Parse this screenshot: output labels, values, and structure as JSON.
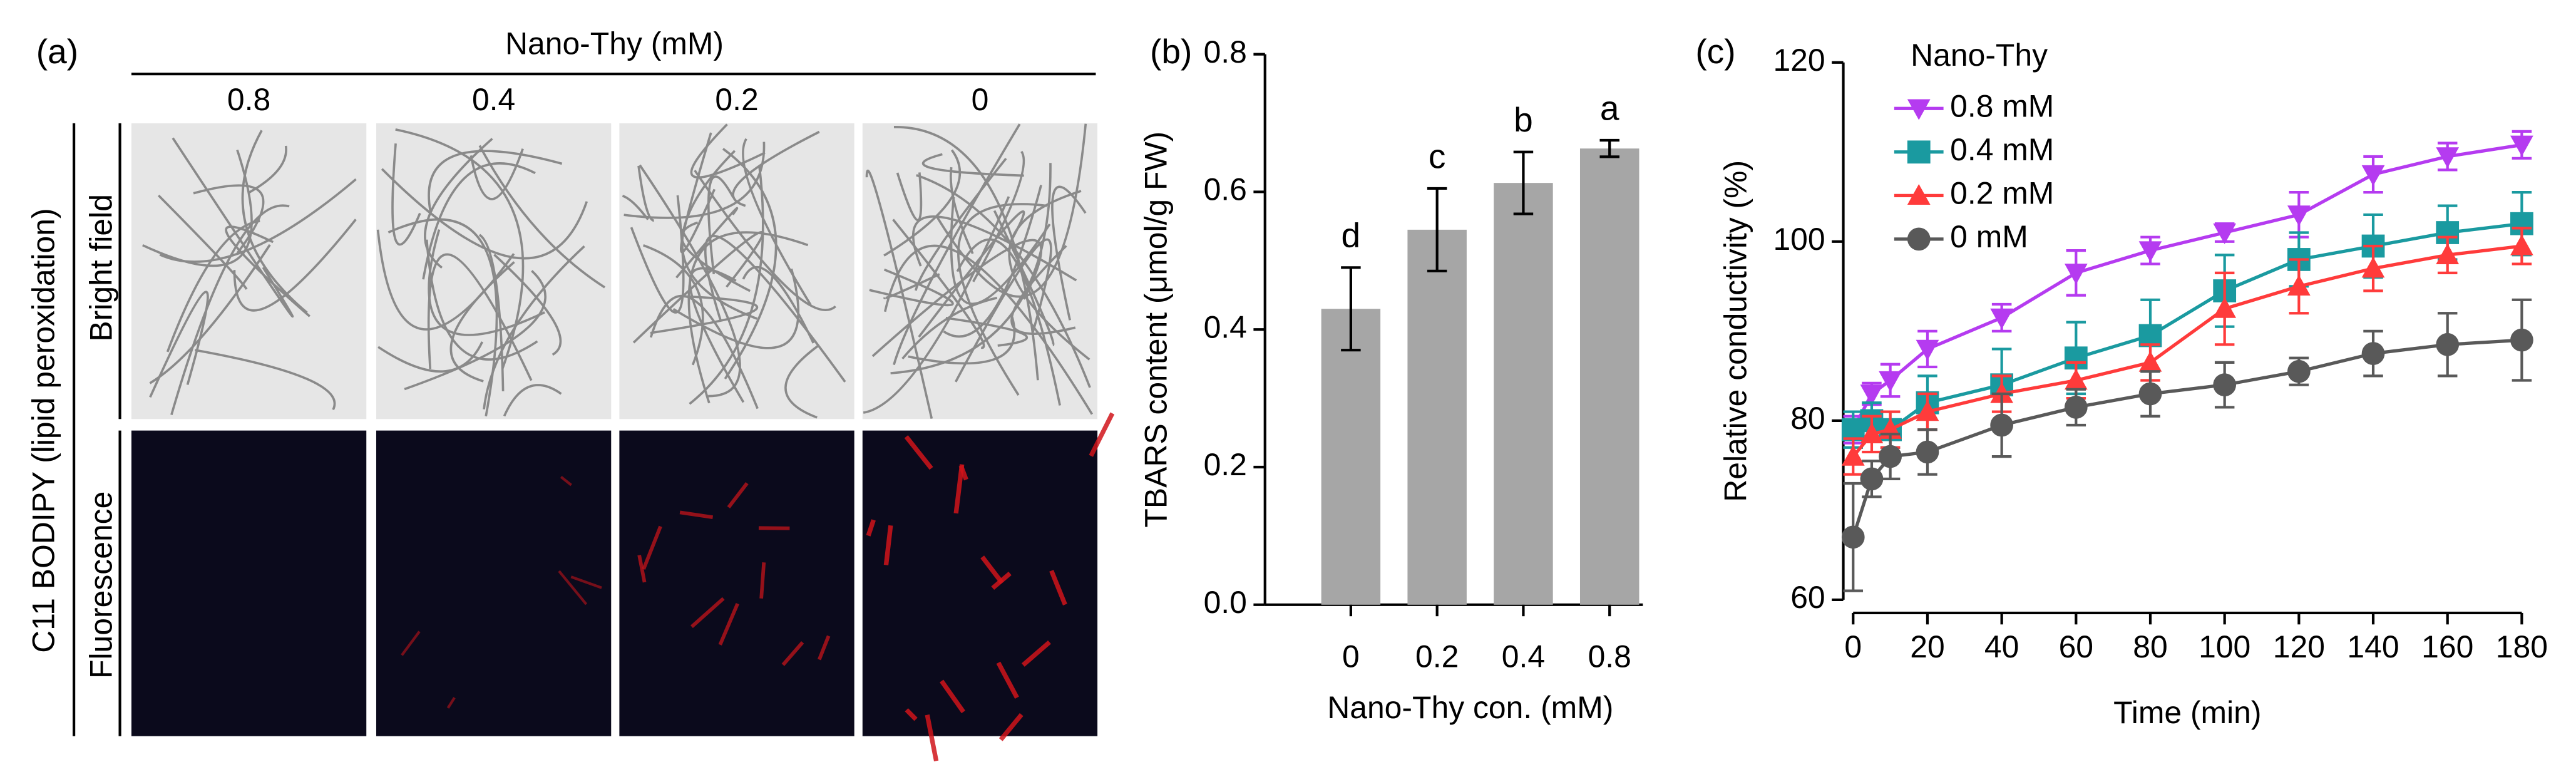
{
  "panel_a": {
    "label": "(a)",
    "title": "Nano-Thy (mM)",
    "columns": [
      "0.8",
      "0.4",
      "0.2",
      "0"
    ],
    "stain": "C11 BODIPY (lipid peroxidation)",
    "rows": [
      "Bright field",
      "Fluorescence"
    ]
  },
  "chart_data": [
    {
      "type": "bar",
      "label": "(b)",
      "x_label": "Nano-Thy con. (mM)",
      "y_label": "TBARS content (μmol/g FW)",
      "categories": [
        "0",
        "0.2",
        "0.4",
        "0.8"
      ],
      "values": [
        0.43,
        0.545,
        0.613,
        0.663
      ],
      "errors": [
        0.06,
        0.06,
        0.045,
        0.012
      ],
      "annotations": [
        "d",
        "c",
        "b",
        "a"
      ],
      "color": "#a6a6a6",
      "ylim": [
        0,
        0.8
      ],
      "yticks": [
        {
          "value": 0,
          "label": "0.0"
        },
        0.2,
        0.4,
        0.6,
        0.8
      ]
    },
    {
      "type": "line",
      "label": "(c)",
      "x_label": "Time (min)",
      "y_label": "Relative conductivity (%)",
      "legend_title": "Nano-Thy",
      "x": [
        0,
        5,
        10,
        20,
        40,
        60,
        80,
        100,
        120,
        140,
        160,
        180
      ],
      "xlim": [
        0,
        180
      ],
      "xticks": [
        0,
        20,
        40,
        60,
        80,
        100,
        120,
        140,
        160,
        180
      ],
      "ylim": [
        60,
        120
      ],
      "yticks": [
        60,
        80,
        100,
        120
      ],
      "series": [
        {
          "name": "0.8 mM",
          "color": "#b53bf0",
          "marker": "triangle-down",
          "values": [
            79,
            83,
            84.5,
            88,
            91.5,
            96.5,
            99,
            101,
            103,
            107.5,
            109.5,
            110.8
          ],
          "errors": [
            1.5,
            1.2,
            1.8,
            2,
            1.5,
            2.5,
            1.5,
            1,
            2.5,
            2,
            1.5,
            1.5
          ]
        },
        {
          "name": "0.4 mM",
          "color": "#1a9aa0",
          "marker": "square",
          "values": [
            79,
            80,
            79,
            82,
            84,
            87,
            89.5,
            94.5,
            98,
            99.5,
            101,
            102
          ],
          "errors": [
            2,
            2,
            2,
            3,
            4,
            4,
            4,
            4,
            3,
            3.5,
            3,
            3.5
          ]
        },
        {
          "name": "0.2 mM",
          "color": "#ff3b3b",
          "marker": "triangle-up",
          "values": [
            76,
            78.5,
            79,
            81,
            83,
            84.5,
            86.5,
            92.5,
            95,
            97,
            98.5,
            99.5
          ],
          "errors": [
            2,
            2,
            2,
            2,
            2,
            2,
            2,
            4,
            3,
            2.5,
            2,
            2
          ]
        },
        {
          "name": "0 mM",
          "color": "#595959",
          "marker": "circle",
          "values": [
            67,
            73.5,
            76,
            76.5,
            79.5,
            81.5,
            83,
            84,
            85.5,
            87.5,
            88.5,
            89
          ],
          "errors": [
            6,
            2,
            2.5,
            2.5,
            3.5,
            2,
            2.5,
            2.5,
            1.5,
            2.5,
            3.5,
            4.5
          ]
        }
      ]
    }
  ]
}
